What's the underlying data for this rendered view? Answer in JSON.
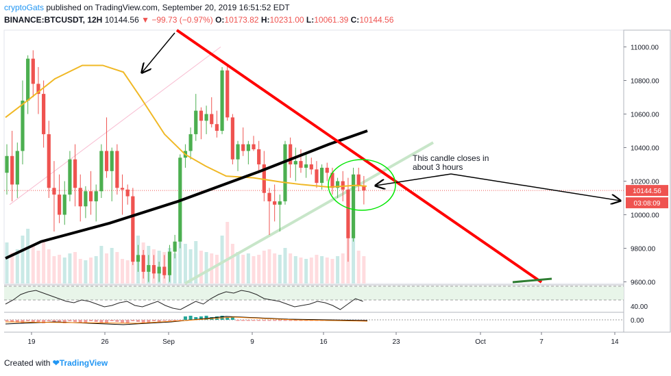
{
  "header": {
    "author": "cryptoGats",
    "published": "published on TradingView.com, September 20, 2019 16:51:52 EDT",
    "symbol": "BINANCE:BTCUSDT, 12H",
    "last": "10144.56",
    "change": "−99.73 (−0.97%)",
    "o_label": "O:",
    "o": "10173.82",
    "h_label": "H:",
    "h": "10231.00",
    "l_label": "L:",
    "l": "10061.39",
    "c_label": "C:",
    "c": "10144.56"
  },
  "footer": {
    "created": "Created with",
    "brand": "TradingView"
  },
  "colors": {
    "up": "#4caf50",
    "down": "#ef5350",
    "ma": "#f0b825",
    "trend": "#ff0000",
    "thick": "#000000",
    "axis_bg": "#ef5350",
    "countdown_bg": "#ef5350"
  },
  "chart_data": {
    "type": "candlestick",
    "x_ticks": [
      "19",
      "26",
      "Sep",
      "9",
      "16",
      "23",
      "Oct",
      "7",
      "14"
    ],
    "y_ticks": [
      "11000.00",
      "10800.00",
      "10600.00",
      "10400.00",
      "10200.00",
      "10000.00",
      "9800.00",
      "9600.00"
    ],
    "ylim": [
      9590,
      11100
    ],
    "rsi_tick": "40.00",
    "macd_tick": "0.00",
    "last_price_label": "10144.56",
    "countdown_label": "03:08:09",
    "annotation": "This candle closes in about 3 hours",
    "candles": [
      {
        "o": 10250,
        "h": 10420,
        "l": 10120,
        "c": 10350
      },
      {
        "o": 10350,
        "h": 10500,
        "l": 10080,
        "c": 10180
      },
      {
        "o": 10180,
        "h": 10430,
        "l": 10100,
        "c": 10380
      },
      {
        "o": 10380,
        "h": 10800,
        "l": 10300,
        "c": 10680
      },
      {
        "o": 10680,
        "h": 10950,
        "l": 10600,
        "c": 10930
      },
      {
        "o": 10930,
        "h": 10980,
        "l": 10700,
        "c": 10780
      },
      {
        "o": 10780,
        "h": 10880,
        "l": 10600,
        "c": 10720
      },
      {
        "o": 10720,
        "h": 10800,
        "l": 10400,
        "c": 10480
      },
      {
        "o": 10480,
        "h": 10560,
        "l": 10100,
        "c": 10160
      },
      {
        "o": 10160,
        "h": 10320,
        "l": 9900,
        "c": 10120
      },
      {
        "o": 10120,
        "h": 10240,
        "l": 9950,
        "c": 10000
      },
      {
        "o": 10000,
        "h": 10200,
        "l": 9940,
        "c": 10120
      },
      {
        "o": 10120,
        "h": 10380,
        "l": 10080,
        "c": 10330
      },
      {
        "o": 10330,
        "h": 10420,
        "l": 10050,
        "c": 10160
      },
      {
        "o": 10160,
        "h": 10240,
        "l": 9960,
        "c": 10050
      },
      {
        "o": 10050,
        "h": 10170,
        "l": 9980,
        "c": 10140
      },
      {
        "o": 10140,
        "h": 10260,
        "l": 10000,
        "c": 10080
      },
      {
        "o": 10080,
        "h": 10180,
        "l": 9960,
        "c": 10140
      },
      {
        "o": 10140,
        "h": 10420,
        "l": 10100,
        "c": 10380
      },
      {
        "o": 10380,
        "h": 10580,
        "l": 10220,
        "c": 10260
      },
      {
        "o": 10260,
        "h": 10400,
        "l": 10080,
        "c": 10380
      },
      {
        "o": 10380,
        "h": 10420,
        "l": 10120,
        "c": 10160
      },
      {
        "o": 10160,
        "h": 10240,
        "l": 10000,
        "c": 10150
      },
      {
        "o": 10150,
        "h": 10180,
        "l": 10060,
        "c": 10110
      },
      {
        "o": 10110,
        "h": 10160,
        "l": 9700,
        "c": 9720
      },
      {
        "o": 9720,
        "h": 9820,
        "l": 9660,
        "c": 9760
      },
      {
        "o": 9760,
        "h": 9790,
        "l": 9620,
        "c": 9660
      },
      {
        "o": 9660,
        "h": 9760,
        "l": 9600,
        "c": 9700
      },
      {
        "o": 9700,
        "h": 9760,
        "l": 9620,
        "c": 9650
      },
      {
        "o": 9650,
        "h": 9720,
        "l": 9600,
        "c": 9690
      },
      {
        "o": 9690,
        "h": 9760,
        "l": 9620,
        "c": 9640
      },
      {
        "o": 9640,
        "h": 9820,
        "l": 9600,
        "c": 9780
      },
      {
        "o": 9780,
        "h": 9880,
        "l": 9740,
        "c": 9840
      },
      {
        "o": 9840,
        "h": 10360,
        "l": 9800,
        "c": 10340
      },
      {
        "o": 10340,
        "h": 10420,
        "l": 10280,
        "c": 10380
      },
      {
        "o": 10380,
        "h": 10520,
        "l": 10330,
        "c": 10480
      },
      {
        "o": 10480,
        "h": 10720,
        "l": 10440,
        "c": 10620
      },
      {
        "o": 10620,
        "h": 10640,
        "l": 10450,
        "c": 10560
      },
      {
        "o": 10560,
        "h": 10650,
        "l": 10480,
        "c": 10600
      },
      {
        "o": 10600,
        "h": 10700,
        "l": 10520,
        "c": 10540
      },
      {
        "o": 10540,
        "h": 10620,
        "l": 10460,
        "c": 10500
      },
      {
        "o": 10500,
        "h": 10880,
        "l": 10480,
        "c": 10860
      },
      {
        "o": 10860,
        "h": 10900,
        "l": 10560,
        "c": 10580
      },
      {
        "o": 10580,
        "h": 10600,
        "l": 10300,
        "c": 10330
      },
      {
        "o": 10330,
        "h": 10440,
        "l": 10260,
        "c": 10420
      },
      {
        "o": 10420,
        "h": 10520,
        "l": 10350,
        "c": 10380
      },
      {
        "o": 10380,
        "h": 10440,
        "l": 10300,
        "c": 10420
      },
      {
        "o": 10420,
        "h": 10470,
        "l": 10380,
        "c": 10390
      },
      {
        "o": 10390,
        "h": 10440,
        "l": 10260,
        "c": 10300
      },
      {
        "o": 10300,
        "h": 10380,
        "l": 10080,
        "c": 10130
      },
      {
        "o": 10130,
        "h": 10160,
        "l": 9880,
        "c": 10080
      },
      {
        "o": 10080,
        "h": 10180,
        "l": 9960,
        "c": 10060
      },
      {
        "o": 10060,
        "h": 10120,
        "l": 9900,
        "c": 10080
      },
      {
        "o": 10080,
        "h": 10440,
        "l": 10060,
        "c": 10420
      },
      {
        "o": 10420,
        "h": 10460,
        "l": 10220,
        "c": 10300
      },
      {
        "o": 10300,
        "h": 10400,
        "l": 10200,
        "c": 10320
      },
      {
        "o": 10320,
        "h": 10390,
        "l": 10250,
        "c": 10280
      },
      {
        "o": 10280,
        "h": 10360,
        "l": 10220,
        "c": 10300
      },
      {
        "o": 10300,
        "h": 10340,
        "l": 10240,
        "c": 10270
      },
      {
        "o": 10270,
        "h": 10320,
        "l": 10160,
        "c": 10190
      },
      {
        "o": 10190,
        "h": 10300,
        "l": 10150,
        "c": 10280
      },
      {
        "o": 10280,
        "h": 10310,
        "l": 10200,
        "c": 10250
      },
      {
        "o": 10250,
        "h": 10280,
        "l": 10120,
        "c": 10160
      },
      {
        "o": 10160,
        "h": 10220,
        "l": 10100,
        "c": 10200
      },
      {
        "o": 10200,
        "h": 10260,
        "l": 10080,
        "c": 10150
      },
      {
        "o": 10150,
        "h": 10220,
        "l": 9720,
        "c": 9860
      },
      {
        "o": 9860,
        "h": 10280,
        "l": 9840,
        "c": 10240
      },
      {
        "o": 10240,
        "h": 10280,
        "l": 10140,
        "c": 10170
      },
      {
        "o": 10173.82,
        "h": 10231.0,
        "l": 10061.39,
        "c": 10144.56
      }
    ]
  }
}
